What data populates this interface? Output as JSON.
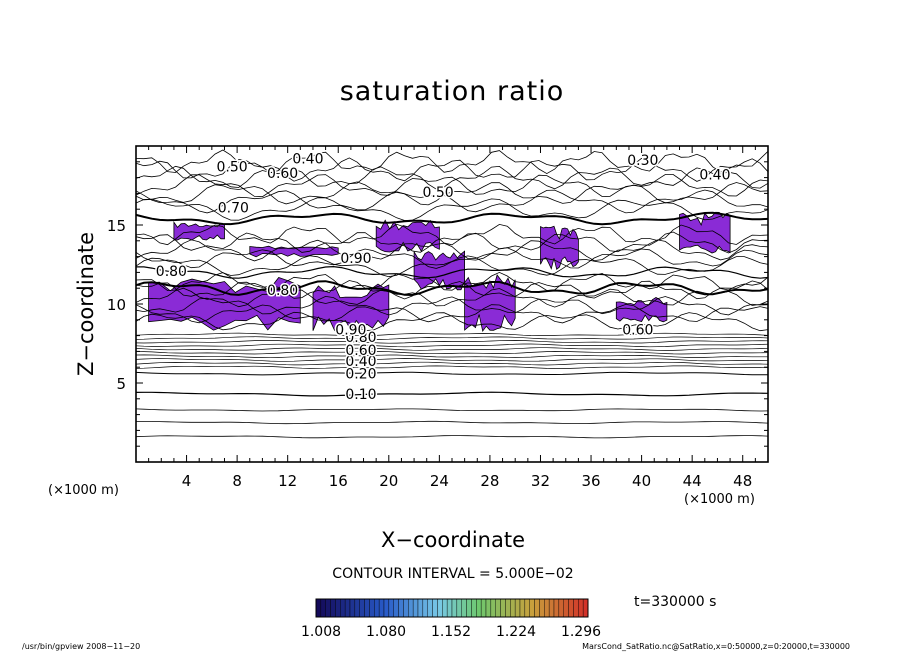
{
  "chart_data": {
    "type": "contour",
    "title": "saturation ratio",
    "xlabel": "X−coordinate",
    "ylabel": "Z−coordinate",
    "x_unit_left": "(×1000 m)",
    "x_unit_right": "(×1000 m)",
    "xlim": [
      0,
      50
    ],
    "ylim": [
      0,
      20
    ],
    "x_ticks": [
      4,
      8,
      12,
      16,
      20,
      24,
      28,
      32,
      36,
      40,
      44,
      48
    ],
    "y_ticks": [
      5,
      10,
      15
    ],
    "contour_interval": "CONTOUR INTERVAL = 5.000E−02",
    "contour_labels": [
      {
        "text": "0.10",
        "x": 17.8,
        "z": 4.3
      },
      {
        "text": "0.20",
        "x": 17.8,
        "z": 5.6
      },
      {
        "text": "0.40",
        "x": 17.8,
        "z": 6.4
      },
      {
        "text": "0.60",
        "x": 17.8,
        "z": 7.1
      },
      {
        "text": "0.80",
        "x": 17.8,
        "z": 7.9
      },
      {
        "text": "0.90",
        "x": 17.0,
        "z": 8.4
      },
      {
        "text": "0.80",
        "x": 2.8,
        "z": 12.1
      },
      {
        "text": "0.70",
        "x": 7.7,
        "z": 16.1
      },
      {
        "text": "0.50",
        "x": 7.6,
        "z": 18.7
      },
      {
        "text": "0.60",
        "x": 11.6,
        "z": 18.3
      },
      {
        "text": "0.40",
        "x": 13.6,
        "z": 19.2
      },
      {
        "text": "0.50",
        "x": 23.9,
        "z": 17.1
      },
      {
        "text": "0.30",
        "x": 40.1,
        "z": 19.1
      },
      {
        "text": "0.40",
        "x": 45.8,
        "z": 18.2
      },
      {
        "text": "0.90",
        "x": 17.4,
        "z": 12.9
      },
      {
        "text": "0.80",
        "x": 11.6,
        "z": 10.9
      },
      {
        "text": "0.60",
        "x": 39.7,
        "z": 8.4
      }
    ],
    "supersaturated_regions": [
      {
        "x": [
          3,
          7
        ],
        "z": [
          14.2,
          15.0
        ]
      },
      {
        "x": [
          1,
          13
        ],
        "z": [
          8.8,
          11.2
        ]
      },
      {
        "x": [
          9,
          16
        ],
        "z": [
          13.1,
          13.6
        ]
      },
      {
        "x": [
          14,
          20
        ],
        "z": [
          8.7,
          10.8
        ]
      },
      {
        "x": [
          19,
          24
        ],
        "z": [
          13.6,
          15.0
        ]
      },
      {
        "x": [
          22,
          26
        ],
        "z": [
          11.3,
          13.1
        ]
      },
      {
        "x": [
          26,
          30
        ],
        "z": [
          8.8,
          11.3
        ]
      },
      {
        "x": [
          32,
          35
        ],
        "z": [
          12.6,
          14.5
        ]
      },
      {
        "x": [
          43,
          47
        ],
        "z": [
          13.6,
          15.4
        ]
      },
      {
        "x": [
          38,
          42
        ],
        "z": [
          9.1,
          10.2
        ]
      }
    ],
    "colorbar": {
      "ticks": [
        "1.008",
        "1.080",
        "1.152",
        "1.224",
        "1.296"
      ]
    },
    "time_label": "t=330000 s",
    "colors": {
      "supersaturated_fill": "#8a2bd6",
      "line": "#000000"
    }
  },
  "footer": {
    "left": "/usr/bin/gpview   2008−11−20",
    "right": "MarsCond_SatRatio.nc@SatRatio,x=0:50000,z=0:20000,t=330000"
  }
}
